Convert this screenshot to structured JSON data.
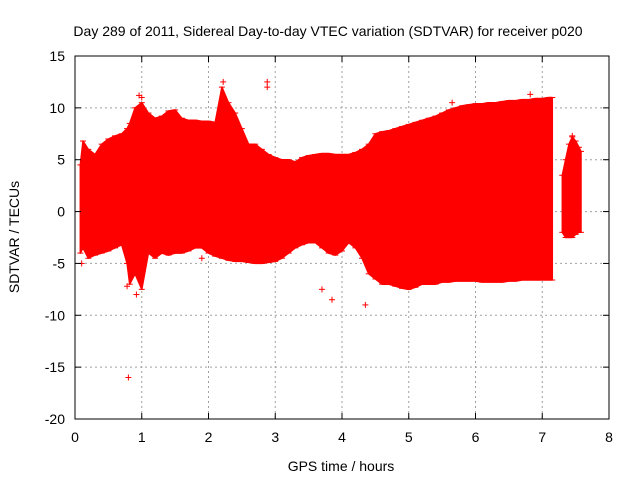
{
  "chart_data": {
    "type": "scatter",
    "title": "Day 289 of 2011, Sidereal Day-to-day VTEC variation (SDTVAR) for receiver p020",
    "xlabel": "GPS time / hours",
    "ylabel": "SDTVAR / TECUs",
    "xlim": [
      0,
      8
    ],
    "ylim": [
      -20,
      15
    ],
    "xticks": [
      0,
      1,
      2,
      3,
      4,
      5,
      6,
      7,
      8
    ],
    "yticks": [
      -20,
      -15,
      -10,
      -5,
      0,
      5,
      10,
      15
    ],
    "grid": true,
    "series": [
      {
        "name": "SDTVAR",
        "style": "error bars",
        "envelope_x": [
          0.08,
          0.12,
          0.2,
          0.3,
          0.4,
          0.5,
          0.6,
          0.7,
          0.78,
          0.82,
          0.9,
          1.0,
          1.1,
          1.2,
          1.3,
          1.4,
          1.5,
          1.6,
          1.7,
          1.8,
          1.9,
          2.0,
          2.1,
          2.2,
          2.3,
          2.4,
          2.5,
          2.6,
          2.7,
          2.8,
          2.9,
          3.0,
          3.1,
          3.2,
          3.3,
          3.4,
          3.5,
          3.6,
          3.7,
          3.8,
          3.9,
          4.0,
          4.1,
          4.2,
          4.3,
          4.4,
          4.5,
          4.6,
          4.7,
          4.8,
          4.9,
          5.0,
          5.1,
          5.2,
          5.3,
          5.4,
          5.5,
          5.6,
          5.7,
          5.8,
          5.9,
          6.0,
          6.1,
          6.2,
          6.3,
          6.4,
          6.5,
          6.6,
          6.7,
          6.8,
          6.9,
          7.0,
          7.1,
          7.15
        ],
        "envelope_upper": [
          4.5,
          6.8,
          6.0,
          5.5,
          6.5,
          7.0,
          7.3,
          7.5,
          8.0,
          8.5,
          10.0,
          10.5,
          9.5,
          9.0,
          9.2,
          9.7,
          9.8,
          9.0,
          8.8,
          8.8,
          8.7,
          8.7,
          8.6,
          12.0,
          10.5,
          9.5,
          8.0,
          6.5,
          6.5,
          6.0,
          5.5,
          5.2,
          5.0,
          5.0,
          4.8,
          5.2,
          5.4,
          5.5,
          5.6,
          5.6,
          5.5,
          5.5,
          5.5,
          5.7,
          6.0,
          6.5,
          7.5,
          7.7,
          7.8,
          8.0,
          8.2,
          8.4,
          8.6,
          8.8,
          9.0,
          9.2,
          9.5,
          9.8,
          10.0,
          10.2,
          10.3,
          10.4,
          10.4,
          10.5,
          10.5,
          10.6,
          10.7,
          10.7,
          10.8,
          10.8,
          10.9,
          10.9,
          11.0,
          11.0
        ],
        "envelope_lower": [
          -4.0,
          -3.5,
          -4.5,
          -4.2,
          -4.0,
          -3.8,
          -3.5,
          -3.2,
          -5.0,
          -7.0,
          -6.0,
          -7.5,
          -4.0,
          -4.5,
          -4.0,
          -4.2,
          -4.0,
          -4.0,
          -3.8,
          -3.5,
          -3.5,
          -4.0,
          -4.3,
          -4.5,
          -4.7,
          -4.8,
          -4.8,
          -4.9,
          -5.0,
          -5.0,
          -4.9,
          -4.8,
          -4.5,
          -4.0,
          -3.5,
          -3.2,
          -3.0,
          -3.0,
          -3.5,
          -4.0,
          -4.2,
          -3.8,
          -3.0,
          -3.5,
          -4.5,
          -6.0,
          -6.5,
          -7.0,
          -7.0,
          -7.2,
          -7.4,
          -7.5,
          -7.3,
          -7.0,
          -7.0,
          -7.0,
          -6.8,
          -6.8,
          -6.7,
          -6.7,
          -6.7,
          -6.7,
          -6.8,
          -6.8,
          -6.8,
          -6.8,
          -6.7,
          -6.7,
          -6.6,
          -6.6,
          -6.6,
          -6.6,
          -6.6,
          -6.6
        ],
        "segment2_x": [
          7.3,
          7.35,
          7.4,
          7.45,
          7.5,
          7.55,
          7.58
        ],
        "segment2_upper": [
          3.5,
          5.0,
          6.5,
          7.2,
          6.8,
          6.2,
          5.8
        ],
        "segment2_lower": [
          -2.0,
          -2.5,
          -2.5,
          -2.5,
          -2.2,
          -2.0,
          -2.0
        ],
        "outliers": [
          {
            "x": 0.1,
            "y": -5.0
          },
          {
            "x": 0.78,
            "y": -7.2
          },
          {
            "x": 0.8,
            "y": -16.0
          },
          {
            "x": 0.92,
            "y": -8.0
          },
          {
            "x": 0.96,
            "y": 11.2
          },
          {
            "x": 1.0,
            "y": 11.0
          },
          {
            "x": 1.9,
            "y": -4.5
          },
          {
            "x": 2.22,
            "y": 12.5
          },
          {
            "x": 2.88,
            "y": 12.5
          },
          {
            "x": 2.88,
            "y": 12.0
          },
          {
            "x": 3.7,
            "y": -7.5
          },
          {
            "x": 3.85,
            "y": -8.5
          },
          {
            "x": 4.35,
            "y": -9.0
          },
          {
            "x": 5.65,
            "y": 10.5
          },
          {
            "x": 6.82,
            "y": 11.3
          },
          {
            "x": 7.45,
            "y": 7.3
          }
        ]
      }
    ]
  },
  "colors": {
    "series": "#ff0000",
    "grid": "#a0a0a0",
    "axis": "#000000",
    "text": "#000000",
    "background": "#ffffff"
  }
}
